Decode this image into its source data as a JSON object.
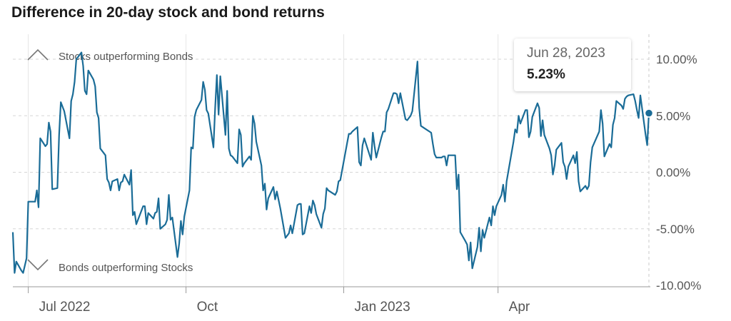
{
  "chart_data": {
    "type": "line",
    "title": "Difference in 20-day stock and bond returns",
    "y_unit": "%",
    "ylim": [
      -10,
      12
    ],
    "y_ticks": [
      10,
      5,
      0,
      -5,
      -10
    ],
    "y_tick_labels": [
      "10.00%",
      "5.00%",
      "0.00%",
      "-5.00%",
      "-10.00%"
    ],
    "x_ticks": [
      {
        "label": "Jul 2022",
        "date": "2022-07-01"
      },
      {
        "label": "Oct",
        "date": "2022-10-01"
      },
      {
        "label": "Jan 2023",
        "date": "2023-01-01"
      },
      {
        "label": "Apr",
        "date": "2023-04-01"
      }
    ],
    "x_range": [
      "2022-06-22",
      "2023-06-28"
    ],
    "grid": true,
    "line_color": "#1a6c97",
    "annotations": {
      "top": "Stocks outperforming Bonds",
      "bottom": "Bonds outperforming Stocks"
    },
    "tooltip": {
      "date": "Jun 28, 2023",
      "value": "5.23%"
    },
    "series": [
      {
        "points": [
          [
            "2022-06-22",
            -5.3
          ],
          [
            "2022-06-23",
            -8.9
          ],
          [
            "2022-06-24",
            -7.9
          ],
          [
            "2022-06-27",
            -8.7
          ],
          [
            "2022-06-28",
            -8.9
          ],
          [
            "2022-06-30",
            -7.6
          ],
          [
            "2022-07-01",
            -2.6
          ],
          [
            "2022-07-05",
            -2.6
          ],
          [
            "2022-07-06",
            -1.6
          ],
          [
            "2022-07-07",
            -3.1
          ],
          [
            "2022-07-08",
            3.0
          ],
          [
            "2022-07-11",
            2.3
          ],
          [
            "2022-07-12",
            2.5
          ],
          [
            "2022-07-13",
            4.4
          ],
          [
            "2022-07-14",
            3.6
          ],
          [
            "2022-07-15",
            -1.5
          ],
          [
            "2022-07-18",
            -1.4
          ],
          [
            "2022-07-19",
            3.3
          ],
          [
            "2022-07-20",
            6.2
          ],
          [
            "2022-07-21",
            5.8
          ],
          [
            "2022-07-22",
            5.4
          ],
          [
            "2022-07-25",
            3.0
          ],
          [
            "2022-07-26",
            6.3
          ],
          [
            "2022-07-27",
            6.9
          ],
          [
            "2022-07-28",
            8.0
          ],
          [
            "2022-07-29",
            10.0
          ],
          [
            "2022-08-01",
            10.6
          ],
          [
            "2022-08-02",
            9.4
          ],
          [
            "2022-08-03",
            7.2
          ],
          [
            "2022-08-04",
            6.9
          ],
          [
            "2022-08-05",
            9.0
          ],
          [
            "2022-08-08",
            8.2
          ],
          [
            "2022-08-09",
            7.6
          ],
          [
            "2022-08-10",
            5.3
          ],
          [
            "2022-08-11",
            4.8
          ],
          [
            "2022-08-12",
            2.1
          ],
          [
            "2022-08-15",
            1.5
          ],
          [
            "2022-08-16",
            -0.6
          ],
          [
            "2022-08-17",
            -0.9
          ],
          [
            "2022-08-18",
            -1.6
          ],
          [
            "2022-08-19",
            -0.8
          ],
          [
            "2022-08-22",
            -0.6
          ],
          [
            "2022-08-23",
            -1.6
          ],
          [
            "2022-08-24",
            -0.9
          ],
          [
            "2022-08-25",
            -0.8
          ],
          [
            "2022-08-26",
            -0.2
          ],
          [
            "2022-08-29",
            -1.1
          ],
          [
            "2022-08-30",
            0.2
          ],
          [
            "2022-08-31",
            -3.8
          ],
          [
            "2022-09-01",
            -3.5
          ],
          [
            "2022-09-02",
            -4.6
          ],
          [
            "2022-09-06",
            -3.0
          ],
          [
            "2022-09-07",
            -3.0
          ],
          [
            "2022-09-08",
            -4.6
          ],
          [
            "2022-09-09",
            -3.6
          ],
          [
            "2022-09-12",
            -4.1
          ],
          [
            "2022-09-13",
            -3.6
          ],
          [
            "2022-09-14",
            -3.5
          ],
          [
            "2022-09-15",
            -2.3
          ],
          [
            "2022-09-16",
            -5.0
          ],
          [
            "2022-09-19",
            -4.6
          ],
          [
            "2022-09-20",
            -4.2
          ],
          [
            "2022-09-21",
            -2.0
          ],
          [
            "2022-09-22",
            -4.2
          ],
          [
            "2022-09-23",
            -4.0
          ],
          [
            "2022-09-26",
            -7.5
          ],
          [
            "2022-09-27",
            -6.3
          ],
          [
            "2022-09-28",
            -4.3
          ],
          [
            "2022-09-29",
            -5.5
          ],
          [
            "2022-09-30",
            -3.9
          ],
          [
            "2022-10-03",
            -1.6
          ],
          [
            "2022-10-04",
            2.2
          ],
          [
            "2022-10-05",
            2.1
          ],
          [
            "2022-10-06",
            4.9
          ],
          [
            "2022-10-07",
            5.5
          ],
          [
            "2022-10-10",
            6.4
          ],
          [
            "2022-10-11",
            8.0
          ],
          [
            "2022-10-12",
            7.3
          ],
          [
            "2022-10-13",
            5.5
          ],
          [
            "2022-10-14",
            5.2
          ],
          [
            "2022-10-17",
            2.2
          ],
          [
            "2022-10-18",
            5.7
          ],
          [
            "2022-10-19",
            8.6
          ],
          [
            "2022-10-20",
            5.1
          ],
          [
            "2022-10-21",
            8.5
          ],
          [
            "2022-10-24",
            3.3
          ],
          [
            "2022-10-25",
            7.2
          ],
          [
            "2022-10-26",
            2.1
          ],
          [
            "2022-10-27",
            1.5
          ],
          [
            "2022-10-28",
            1.4
          ],
          [
            "2022-10-31",
            0.8
          ],
          [
            "2022-11-01",
            3.8
          ],
          [
            "2022-11-02",
            3.3
          ],
          [
            "2022-11-03",
            0.5
          ],
          [
            "2022-11-04",
            0.8
          ],
          [
            "2022-11-07",
            1.4
          ],
          [
            "2022-11-08",
            1.1
          ],
          [
            "2022-11-09",
            5.0
          ],
          [
            "2022-11-10",
            4.3
          ],
          [
            "2022-11-11",
            2.7
          ],
          [
            "2022-11-14",
            0.6
          ],
          [
            "2022-11-15",
            -1.6
          ],
          [
            "2022-11-16",
            -1.0
          ],
          [
            "2022-11-17",
            -3.3
          ],
          [
            "2022-11-18",
            -2.3
          ],
          [
            "2022-11-21",
            -1.3
          ],
          [
            "2022-11-22",
            -2.4
          ],
          [
            "2022-11-23",
            -1.7
          ],
          [
            "2022-11-25",
            -3.2
          ],
          [
            "2022-11-28",
            -5.8
          ],
          [
            "2022-11-29",
            -5.6
          ],
          [
            "2022-11-30",
            -5.4
          ],
          [
            "2022-12-01",
            -4.7
          ],
          [
            "2022-12-02",
            -5.4
          ],
          [
            "2022-12-05",
            -2.9
          ],
          [
            "2022-12-06",
            -2.8
          ],
          [
            "2022-12-07",
            -2.8
          ],
          [
            "2022-12-08",
            -5.5
          ],
          [
            "2022-12-09",
            -5.4
          ],
          [
            "2022-12-12",
            -3.0
          ],
          [
            "2022-12-13",
            -3.6
          ],
          [
            "2022-12-14",
            -2.5
          ],
          [
            "2022-12-15",
            -2.9
          ],
          [
            "2022-12-16",
            -3.7
          ],
          [
            "2022-12-19",
            -4.9
          ],
          [
            "2022-12-20",
            -3.7
          ],
          [
            "2022-12-21",
            -3.2
          ],
          [
            "2022-12-22",
            -1.4
          ],
          [
            "2022-12-23",
            -1.6
          ],
          [
            "2022-12-27",
            -2.0
          ],
          [
            "2022-12-28",
            -1.7
          ],
          [
            "2022-12-29",
            -0.8
          ],
          [
            "2022-12-30",
            -0.7
          ],
          [
            "2023-01-03",
            2.6
          ],
          [
            "2023-01-04",
            3.4
          ],
          [
            "2023-01-05",
            3.4
          ],
          [
            "2023-01-06",
            3.6
          ],
          [
            "2023-01-09",
            4.0
          ],
          [
            "2023-01-10",
            0.9
          ],
          [
            "2023-01-11",
            0.6
          ],
          [
            "2023-01-12",
            2.4
          ],
          [
            "2023-01-13",
            3.0
          ],
          [
            "2023-01-17",
            1.1
          ],
          [
            "2023-01-18",
            3.5
          ],
          [
            "2023-01-19",
            2.3
          ],
          [
            "2023-01-20",
            1.3
          ],
          [
            "2023-01-23",
            3.1
          ],
          [
            "2023-01-24",
            3.6
          ],
          [
            "2023-01-25",
            3.6
          ],
          [
            "2023-01-26",
            5.3
          ],
          [
            "2023-01-27",
            5.6
          ],
          [
            "2023-01-30",
            7.0
          ],
          [
            "2023-01-31",
            7.0
          ],
          [
            "2023-02-01",
            6.9
          ],
          [
            "2023-02-02",
            6.1
          ],
          [
            "2023-02-03",
            7.0
          ],
          [
            "2023-02-06",
            4.7
          ],
          [
            "2023-02-07",
            4.6
          ],
          [
            "2023-02-08",
            4.8
          ],
          [
            "2023-02-09",
            5.0
          ],
          [
            "2023-02-10",
            5.4
          ],
          [
            "2023-02-13",
            9.8
          ],
          [
            "2023-02-14",
            5.7
          ],
          [
            "2023-02-15",
            4.1
          ],
          [
            "2023-02-16",
            4.0
          ],
          [
            "2023-02-17",
            3.9
          ],
          [
            "2023-02-21",
            3.5
          ],
          [
            "2023-02-22",
            2.5
          ],
          [
            "2023-02-23",
            1.6
          ],
          [
            "2023-02-24",
            1.3
          ],
          [
            "2023-02-27",
            1.3
          ],
          [
            "2023-02-28",
            1.4
          ],
          [
            "2023-03-01",
            1.4
          ],
          [
            "2023-03-02",
            0.6
          ],
          [
            "2023-03-03",
            1.5
          ],
          [
            "2023-03-06",
            1.5
          ],
          [
            "2023-03-07",
            1.5
          ],
          [
            "2023-03-08",
            -1.5
          ],
          [
            "2023-03-09",
            -0.2
          ],
          [
            "2023-03-10",
            -5.3
          ],
          [
            "2023-03-13",
            -6.1
          ],
          [
            "2023-03-14",
            -6.4
          ],
          [
            "2023-03-15",
            -7.8
          ],
          [
            "2023-03-16",
            -6.2
          ],
          [
            "2023-03-17",
            -8.5
          ],
          [
            "2023-03-20",
            -6.6
          ],
          [
            "2023-03-21",
            -4.9
          ],
          [
            "2023-03-22",
            -7.0
          ],
          [
            "2023-03-23",
            -5.1
          ],
          [
            "2023-03-24",
            -5.8
          ],
          [
            "2023-03-27",
            -4.0
          ],
          [
            "2023-03-28",
            -4.7
          ],
          [
            "2023-03-29",
            -3.0
          ],
          [
            "2023-03-30",
            -3.8
          ],
          [
            "2023-03-31",
            -3.0
          ],
          [
            "2023-04-03",
            -2.0
          ],
          [
            "2023-04-04",
            -1.1
          ],
          [
            "2023-04-05",
            -2.6
          ],
          [
            "2023-04-06",
            -0.8
          ],
          [
            "2023-04-10",
            2.7
          ],
          [
            "2023-04-11",
            3.8
          ],
          [
            "2023-04-12",
            3.5
          ],
          [
            "2023-04-13",
            5.0
          ],
          [
            "2023-04-14",
            4.3
          ],
          [
            "2023-04-17",
            5.5
          ],
          [
            "2023-04-18",
            5.5
          ],
          [
            "2023-04-19",
            3.1
          ],
          [
            "2023-04-20",
            3.6
          ],
          [
            "2023-04-21",
            4.9
          ],
          [
            "2023-04-24",
            6.1
          ],
          [
            "2023-04-25",
            5.7
          ],
          [
            "2023-04-26",
            3.2
          ],
          [
            "2023-04-27",
            4.6
          ],
          [
            "2023-04-28",
            3.3
          ],
          [
            "2023-05-01",
            2.1
          ],
          [
            "2023-05-02",
            1.5
          ],
          [
            "2023-05-03",
            -0.2
          ],
          [
            "2023-05-04",
            0.6
          ],
          [
            "2023-05-05",
            2.0
          ],
          [
            "2023-05-08",
            2.6
          ],
          [
            "2023-05-09",
            0.9
          ],
          [
            "2023-05-10",
            0.5
          ],
          [
            "2023-05-11",
            -0.6
          ],
          [
            "2023-05-12",
            0.5
          ],
          [
            "2023-05-15",
            1.5
          ],
          [
            "2023-05-16",
            0.8
          ],
          [
            "2023-05-17",
            1.8
          ],
          [
            "2023-05-18",
            -0.8
          ],
          [
            "2023-05-19",
            -1.7
          ],
          [
            "2023-05-22",
            -1.2
          ],
          [
            "2023-05-23",
            -1.5
          ],
          [
            "2023-05-24",
            -1.2
          ],
          [
            "2023-05-25",
            0.9
          ],
          [
            "2023-05-26",
            2.2
          ],
          [
            "2023-05-30",
            3.6
          ],
          [
            "2023-05-31",
            5.5
          ],
          [
            "2023-06-01",
            4.3
          ],
          [
            "2023-06-02",
            1.4
          ],
          [
            "2023-06-05",
            2.5
          ],
          [
            "2023-06-06",
            2.2
          ],
          [
            "2023-06-07",
            4.2
          ],
          [
            "2023-06-08",
            4.8
          ],
          [
            "2023-06-09",
            6.3
          ],
          [
            "2023-06-12",
            5.9
          ],
          [
            "2023-06-13",
            5.6
          ],
          [
            "2023-06-14",
            6.5
          ],
          [
            "2023-06-15",
            6.7
          ],
          [
            "2023-06-16",
            6.8
          ],
          [
            "2023-06-19",
            6.9
          ],
          [
            "2023-06-20",
            6.3
          ],
          [
            "2023-06-21",
            5.5
          ],
          [
            "2023-06-22",
            4.8
          ],
          [
            "2023-06-23",
            6.8
          ],
          [
            "2023-06-26",
            3.4
          ],
          [
            "2023-06-27",
            2.4
          ],
          [
            "2023-06-28",
            5.23
          ]
        ]
      }
    ]
  }
}
